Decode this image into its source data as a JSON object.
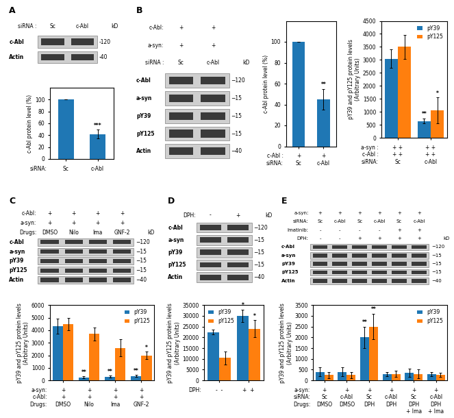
{
  "chart_data": [
    {
      "type": "blot",
      "title": "A",
      "header_rows": [
        {
          "label": "siRNA :",
          "values": [
            "Sc",
            "c-Abl"
          ]
        }
      ],
      "unit": "kD",
      "rows": [
        "c-Abl",
        "Actin"
      ],
      "row_annotations": [
        "-120",
        "-40"
      ]
    },
    {
      "type": "bar",
      "ylabel": "c-Abl protein level (%)",
      "values": [
        100,
        42
      ],
      "errors": [
        0,
        7
      ],
      "annotations": [
        null,
        "***"
      ],
      "ylim": [
        0,
        120
      ],
      "yticks": [
        0,
        20,
        40,
        60,
        80,
        100
      ],
      "tick_labels": "y",
      "x_label_rows": [
        {
          "label": "siRNA:",
          "values": [
            "Sc",
            "c-Abl"
          ]
        }
      ]
    },
    {
      "type": "blot",
      "title": "B",
      "header_rows": [
        {
          "label": "c-Abl:",
          "values": [
            "+",
            "+"
          ]
        },
        {
          "label": "a-syn:",
          "values": [
            "+",
            "+"
          ]
        },
        {
          "label": "siRNA :",
          "values": [
            "Sc",
            "c-Abl"
          ]
        }
      ],
      "unit": "kD",
      "rows": [
        "c-Abl",
        "a-syn",
        "pY39",
        "pY125",
        "Actin"
      ],
      "row_annotations": [
        "−120",
        "−15",
        "−15",
        "−15",
        "−40"
      ]
    },
    {
      "type": "bar",
      "ylabel": "c-Abl protein level (%)",
      "values": [
        100,
        45
      ],
      "errors": [
        0,
        10
      ],
      "annotations": [
        null,
        "**"
      ],
      "ylim": [
        0,
        120
      ],
      "yticks": [
        0,
        20,
        40,
        60,
        80,
        100
      ],
      "tick_labels": "y",
      "x_label_rows": [
        {
          "label": "c-Abl :",
          "values": [
            "+",
            "+"
          ]
        },
        {
          "label": "siRNA:",
          "values": [
            "Sc",
            "c-Abl"
          ]
        }
      ]
    },
    {
      "type": "bar",
      "ylabel": "pY39 and pY125 protein levels\n(Arbitrary Units)",
      "series": [
        {
          "name": "pY39",
          "values": [
            3050,
            650
          ],
          "errors": [
            350,
            100
          ],
          "annotations": [
            null,
            "**"
          ]
        },
        {
          "name": "pY125",
          "values": [
            3500,
            1050
          ],
          "errors": [
            450,
            500
          ],
          "annotations": [
            null,
            "*"
          ]
        }
      ],
      "ylim": [
        0,
        4500
      ],
      "yticks": [
        0,
        500,
        1000,
        1500,
        2000,
        2500,
        3000,
        3500,
        4000,
        4500
      ],
      "legend": "upper right",
      "tick_labels": "y",
      "x_label_rows": [
        {
          "label": "a-syn :",
          "values": [
            "+ +",
            "+ +"
          ]
        },
        {
          "label": "c-Abl :",
          "values": [
            "+ +",
            "+ +"
          ]
        },
        {
          "label": "siRNA:",
          "values": [
            "Sc",
            "c-Abl"
          ]
        }
      ]
    },
    {
      "type": "blot",
      "title": "C",
      "header_rows": [
        {
          "label": "c-Abl:",
          "values": [
            "+",
            "+",
            "+",
            "+"
          ]
        },
        {
          "label": "a-syn:",
          "values": [
            "+",
            "+",
            "+",
            "+"
          ]
        },
        {
          "label": "Drugs:",
          "values": [
            "DMSO",
            "Nilo",
            "Ima",
            "GNF-2"
          ]
        }
      ],
      "unit": "kD",
      "rows": [
        "c-Abl",
        "a-syn",
        "pY39",
        "pY125",
        "Actin"
      ],
      "row_annotations": [
        "−120",
        "−15",
        "−15",
        "−15",
        "−40"
      ]
    },
    {
      "type": "bar",
      "ylabel": "pY39 and pY125 protein levels\n(Arbitrary Units)",
      "series": [
        {
          "name": "pY39",
          "values": [
            4300,
            250,
            300,
            350
          ],
          "errors": [
            600,
            80,
            80,
            80
          ],
          "annotations": [
            null,
            "**",
            "**",
            "**"
          ]
        },
        {
          "name": "pY125",
          "values": [
            4500,
            3700,
            2600,
            2000
          ],
          "errors": [
            500,
            500,
            700,
            300
          ],
          "annotations": [
            null,
            null,
            null,
            "*"
          ]
        }
      ],
      "ylim": [
        0,
        6000
      ],
      "yticks": [
        0,
        1000,
        2000,
        3000,
        4000,
        5000,
        6000
      ],
      "legend": "upper right",
      "tick_labels": "y",
      "x_label_rows": [
        {
          "label": "a-syn:",
          "values": [
            "+",
            "+",
            "+",
            "+"
          ]
        },
        {
          "label": "c-Abl:",
          "values": [
            "+",
            "+",
            "+",
            "+"
          ]
        },
        {
          "label": "Drugs:",
          "values": [
            "DMSO",
            "Nilo",
            "Ima",
            "GNF-2"
          ]
        }
      ]
    },
    {
      "type": "blot",
      "title": "D",
      "header_rows": [
        {
          "label": "DPH:",
          "values": [
            "-",
            "+"
          ]
        }
      ],
      "unit": "kD",
      "rows": [
        "c-Abl",
        "a-syn",
        "pY39",
        "pY125",
        "Actin"
      ],
      "row_annotations": [
        "−120",
        "−15",
        "−15",
        "−15",
        "−40"
      ]
    },
    {
      "type": "bar",
      "ylabel": "pY39 and pY125 protein levels\n(Arbitrary Units)",
      "series": [
        {
          "name": "pY39",
          "values": [
            22500,
            30000
          ],
          "errors": [
            1000,
            3000
          ],
          "annotations": [
            null,
            "*"
          ]
        },
        {
          "name": "pY125",
          "values": [
            10500,
            24000
          ],
          "errors": [
            3000,
            4000
          ],
          "annotations": [
            null,
            "*"
          ]
        }
      ],
      "ylim": [
        0,
        35000
      ],
      "yticks": [
        0,
        5000,
        10000,
        15000,
        20000,
        25000,
        30000,
        35000
      ],
      "legend": "upper left",
      "tick_labels": "y",
      "x_label_rows": [
        {
          "label": "DPH:",
          "values": [
            "-  -",
            "+  +"
          ]
        }
      ]
    },
    {
      "type": "blot",
      "title": "E",
      "header_rows": [
        {
          "label": "a-syn:",
          "values": [
            "+",
            "+",
            "+",
            "+",
            "+",
            "+"
          ]
        },
        {
          "label": "siRNA:",
          "values": [
            "Sc",
            "c-Abl",
            "Sc",
            "c-Abl",
            "Sc",
            "c-Abl"
          ]
        },
        {
          "label": "Imatinib:",
          "values": [
            "-",
            "-",
            "-",
            "-",
            "+",
            "+"
          ]
        },
        {
          "label": "DPH:",
          "values": [
            "-",
            "-",
            "+",
            "+",
            "+",
            "+"
          ]
        }
      ],
      "unit": "kD",
      "rows": [
        "c-Abl",
        "a-syn",
        "pY39",
        "pY125",
        "Actin"
      ],
      "row_annotations": [
        "−120",
        "−15",
        "−15",
        "−15",
        "−40"
      ]
    },
    {
      "type": "bar",
      "ylabel": "pY39 and pY125 protein levels\n(Arbitrary Units)",
      "series": [
        {
          "name": "pY39",
          "values": [
            400,
            400,
            2000,
            300,
            350,
            300
          ],
          "errors": [
            200,
            200,
            500,
            100,
            200,
            100
          ],
          "annotations": [
            null,
            null,
            "**",
            null,
            null,
            null
          ]
        },
        {
          "name": "pY125",
          "values": [
            250,
            250,
            2500,
            300,
            300,
            250
          ],
          "errors": [
            150,
            150,
            600,
            150,
            200,
            100
          ],
          "annotations": [
            null,
            null,
            "**",
            null,
            null,
            null
          ]
        }
      ],
      "ylim": [
        0,
        3500
      ],
      "yticks": [
        0,
        500,
        1000,
        1500,
        2000,
        2500,
        3000,
        3500
      ],
      "legend": "upper right",
      "tick_labels": "y",
      "x_label_rows": [
        {
          "label": "a-syn:",
          "values": [
            "+",
            "+",
            "+",
            "+",
            "+",
            "+"
          ]
        },
        {
          "label": "siRNA:",
          "values": [
            "Sc",
            "c-Abl",
            "Sc",
            "c-Abl",
            "Sc",
            "c-Abl"
          ]
        },
        {
          "label": "Drugs:",
          "values": [
            "DMSO",
            "DMSO",
            "DPH",
            "DPH",
            "DPH",
            "DPH"
          ]
        },
        {
          "label": null,
          "values": [
            null,
            null,
            null,
            null,
            "+ Ima",
            "+ Ima"
          ]
        }
      ]
    }
  ]
}
